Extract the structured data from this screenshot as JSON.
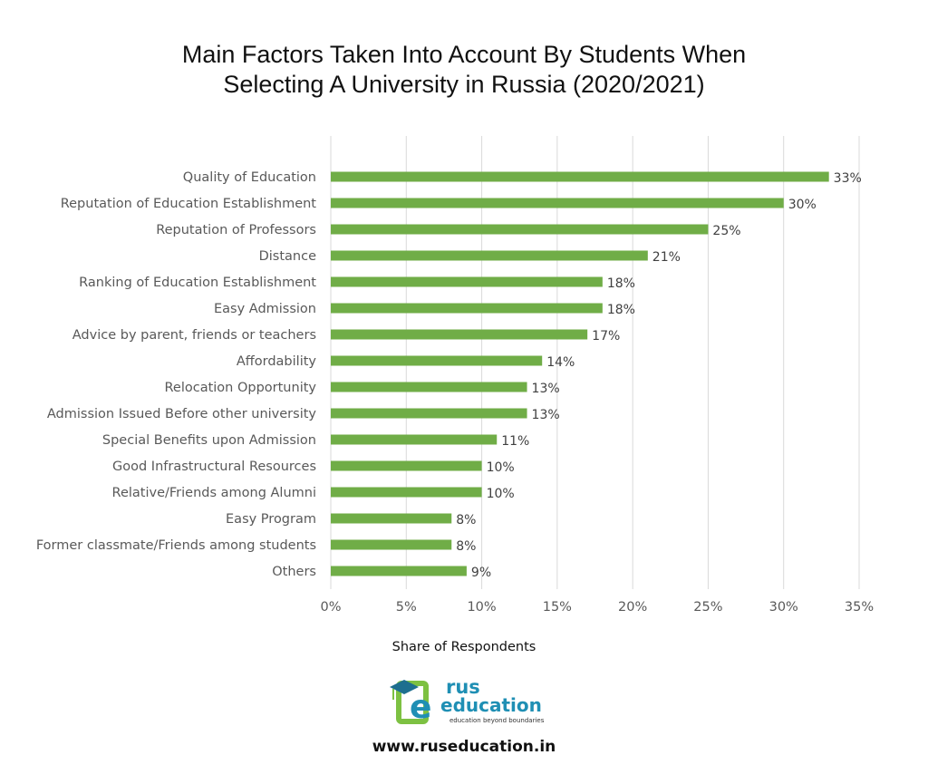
{
  "chart_data": {
    "type": "bar",
    "orientation": "horizontal",
    "title_lines": [
      "Main Factors Taken Into Account By Students When",
      "Selecting A University in Russia (2020/2021)"
    ],
    "xlabel": "Share of Respondents",
    "ylabel": "",
    "xlim": [
      0,
      35
    ],
    "x_ticks": [
      0,
      5,
      10,
      15,
      20,
      25,
      30,
      35
    ],
    "x_tick_labels": [
      "0%",
      "5%",
      "10%",
      "15%",
      "20%",
      "25%",
      "30%",
      "35%"
    ],
    "grid": "vertical",
    "bar_color": "#70ad47",
    "categories": [
      "Quality of Education",
      "Reputation of Education Establishment",
      "Reputation of Professors",
      "Distance",
      "Ranking of Education Establishment",
      "Easy Admission",
      "Advice by parent, friends or teachers",
      "Affordability",
      "Relocation Opportunity",
      "Admission Issued Before other university",
      "Special Benefits upon Admission",
      "Good Infrastructural Resources",
      "Relative/Friends among Alumni",
      "Easy Program",
      "Former classmate/Friends among students",
      "Others"
    ],
    "values": [
      33,
      30,
      25,
      21,
      18,
      18,
      17,
      14,
      13,
      13,
      11,
      10,
      10,
      8,
      8,
      9
    ],
    "value_labels": [
      "33%",
      "30%",
      "25%",
      "21%",
      "18%",
      "18%",
      "17%",
      "14%",
      "13%",
      "13%",
      "11%",
      "10%",
      "10%",
      "8%",
      "8%",
      "9%"
    ]
  },
  "branding": {
    "logo_word1": "rus",
    "logo_word2": "education",
    "logo_tagline": "education beyond boundaries",
    "logo_letter": "e",
    "website": "www.ruseducation.in",
    "colors": {
      "blue": "#1f8fb4",
      "green": "#7dc142",
      "cap": "#1e6f8f"
    }
  }
}
